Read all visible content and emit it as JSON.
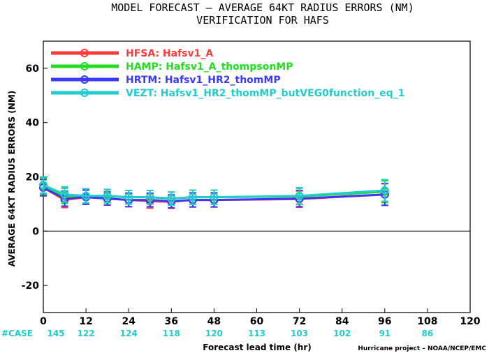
{
  "chart_data": {
    "type": "line",
    "title": "MODEL FORECAST – AVERAGE 64KT RADIUS ERRORS (NM)",
    "subtitle": "VERIFICATION FOR HAFS",
    "xlabel": "Forecast lead time (hr)",
    "ylabel": "AVERAGE 64KT RADIUS ERRORS (NM)",
    "xlim": [
      0,
      120
    ],
    "ylim": [
      -30,
      70
    ],
    "xticks": [
      0,
      12,
      24,
      36,
      48,
      60,
      72,
      84,
      96,
      108,
      120
    ],
    "yticks": [
      -20,
      0,
      20,
      40,
      60
    ],
    "x": [
      0,
      6,
      12,
      18,
      24,
      30,
      36,
      42,
      48,
      72,
      96
    ],
    "series": [
      {
        "name": "HFSA",
        "label": "HFSA:  Hafsv1_A",
        "color": "#ff3a3a",
        "values": [
          16.0,
          11.5,
          12.5,
          12.0,
          11.5,
          11.0,
          10.8,
          11.5,
          11.5,
          11.8,
          13.5
        ],
        "error": [
          3.0,
          2.8,
          2.6,
          2.4,
          2.5,
          2.5,
          2.4,
          2.6,
          2.6,
          3.0,
          4.0
        ]
      },
      {
        "name": "HAMP",
        "label": "HAMP:  Hafsv1_A_thompsonMP",
        "color": "#22dd22",
        "values": [
          16.5,
          13.0,
          13.0,
          12.8,
          12.5,
          12.5,
          12.0,
          12.5,
          12.5,
          12.8,
          14.5
        ],
        "error": [
          3.0,
          2.8,
          2.6,
          2.4,
          2.5,
          2.5,
          2.4,
          2.6,
          2.6,
          3.0,
          4.0
        ]
      },
      {
        "name": "HRTM",
        "label": "HRTM:  Hafsv1_HR2_thomMP",
        "color": "#3a3aff",
        "values": [
          16.0,
          12.0,
          12.5,
          12.0,
          11.5,
          11.5,
          11.0,
          11.5,
          11.5,
          12.0,
          13.5
        ],
        "error": [
          3.0,
          2.8,
          2.6,
          2.4,
          2.5,
          2.5,
          2.4,
          2.6,
          2.6,
          3.0,
          4.0
        ]
      },
      {
        "name": "VEZT",
        "label": "VEZT:  Hafsv1_HR2_thomMP_butVEG0function_eq_1",
        "color": "#22cccc",
        "values": [
          17.0,
          13.5,
          13.0,
          13.0,
          12.5,
          12.5,
          12.0,
          12.5,
          12.5,
          13.0,
          15.0
        ],
        "error": [
          3.0,
          2.8,
          2.6,
          2.4,
          2.5,
          2.5,
          2.4,
          2.6,
          2.6,
          3.0,
          4.0
        ]
      }
    ],
    "cases": {
      "label": "#CASE",
      "color": "#22cccc",
      "x": [
        0,
        12,
        24,
        36,
        48,
        60,
        72,
        84,
        96,
        108
      ],
      "values": [
        "145",
        "122",
        "124",
        "118",
        "120",
        "113",
        "103",
        "102",
        "91",
        "86"
      ]
    },
    "zero_line": true,
    "grid": false,
    "legend": "top-left",
    "credit": "Hurricane project – NOAA/NCEP/EMC"
  }
}
